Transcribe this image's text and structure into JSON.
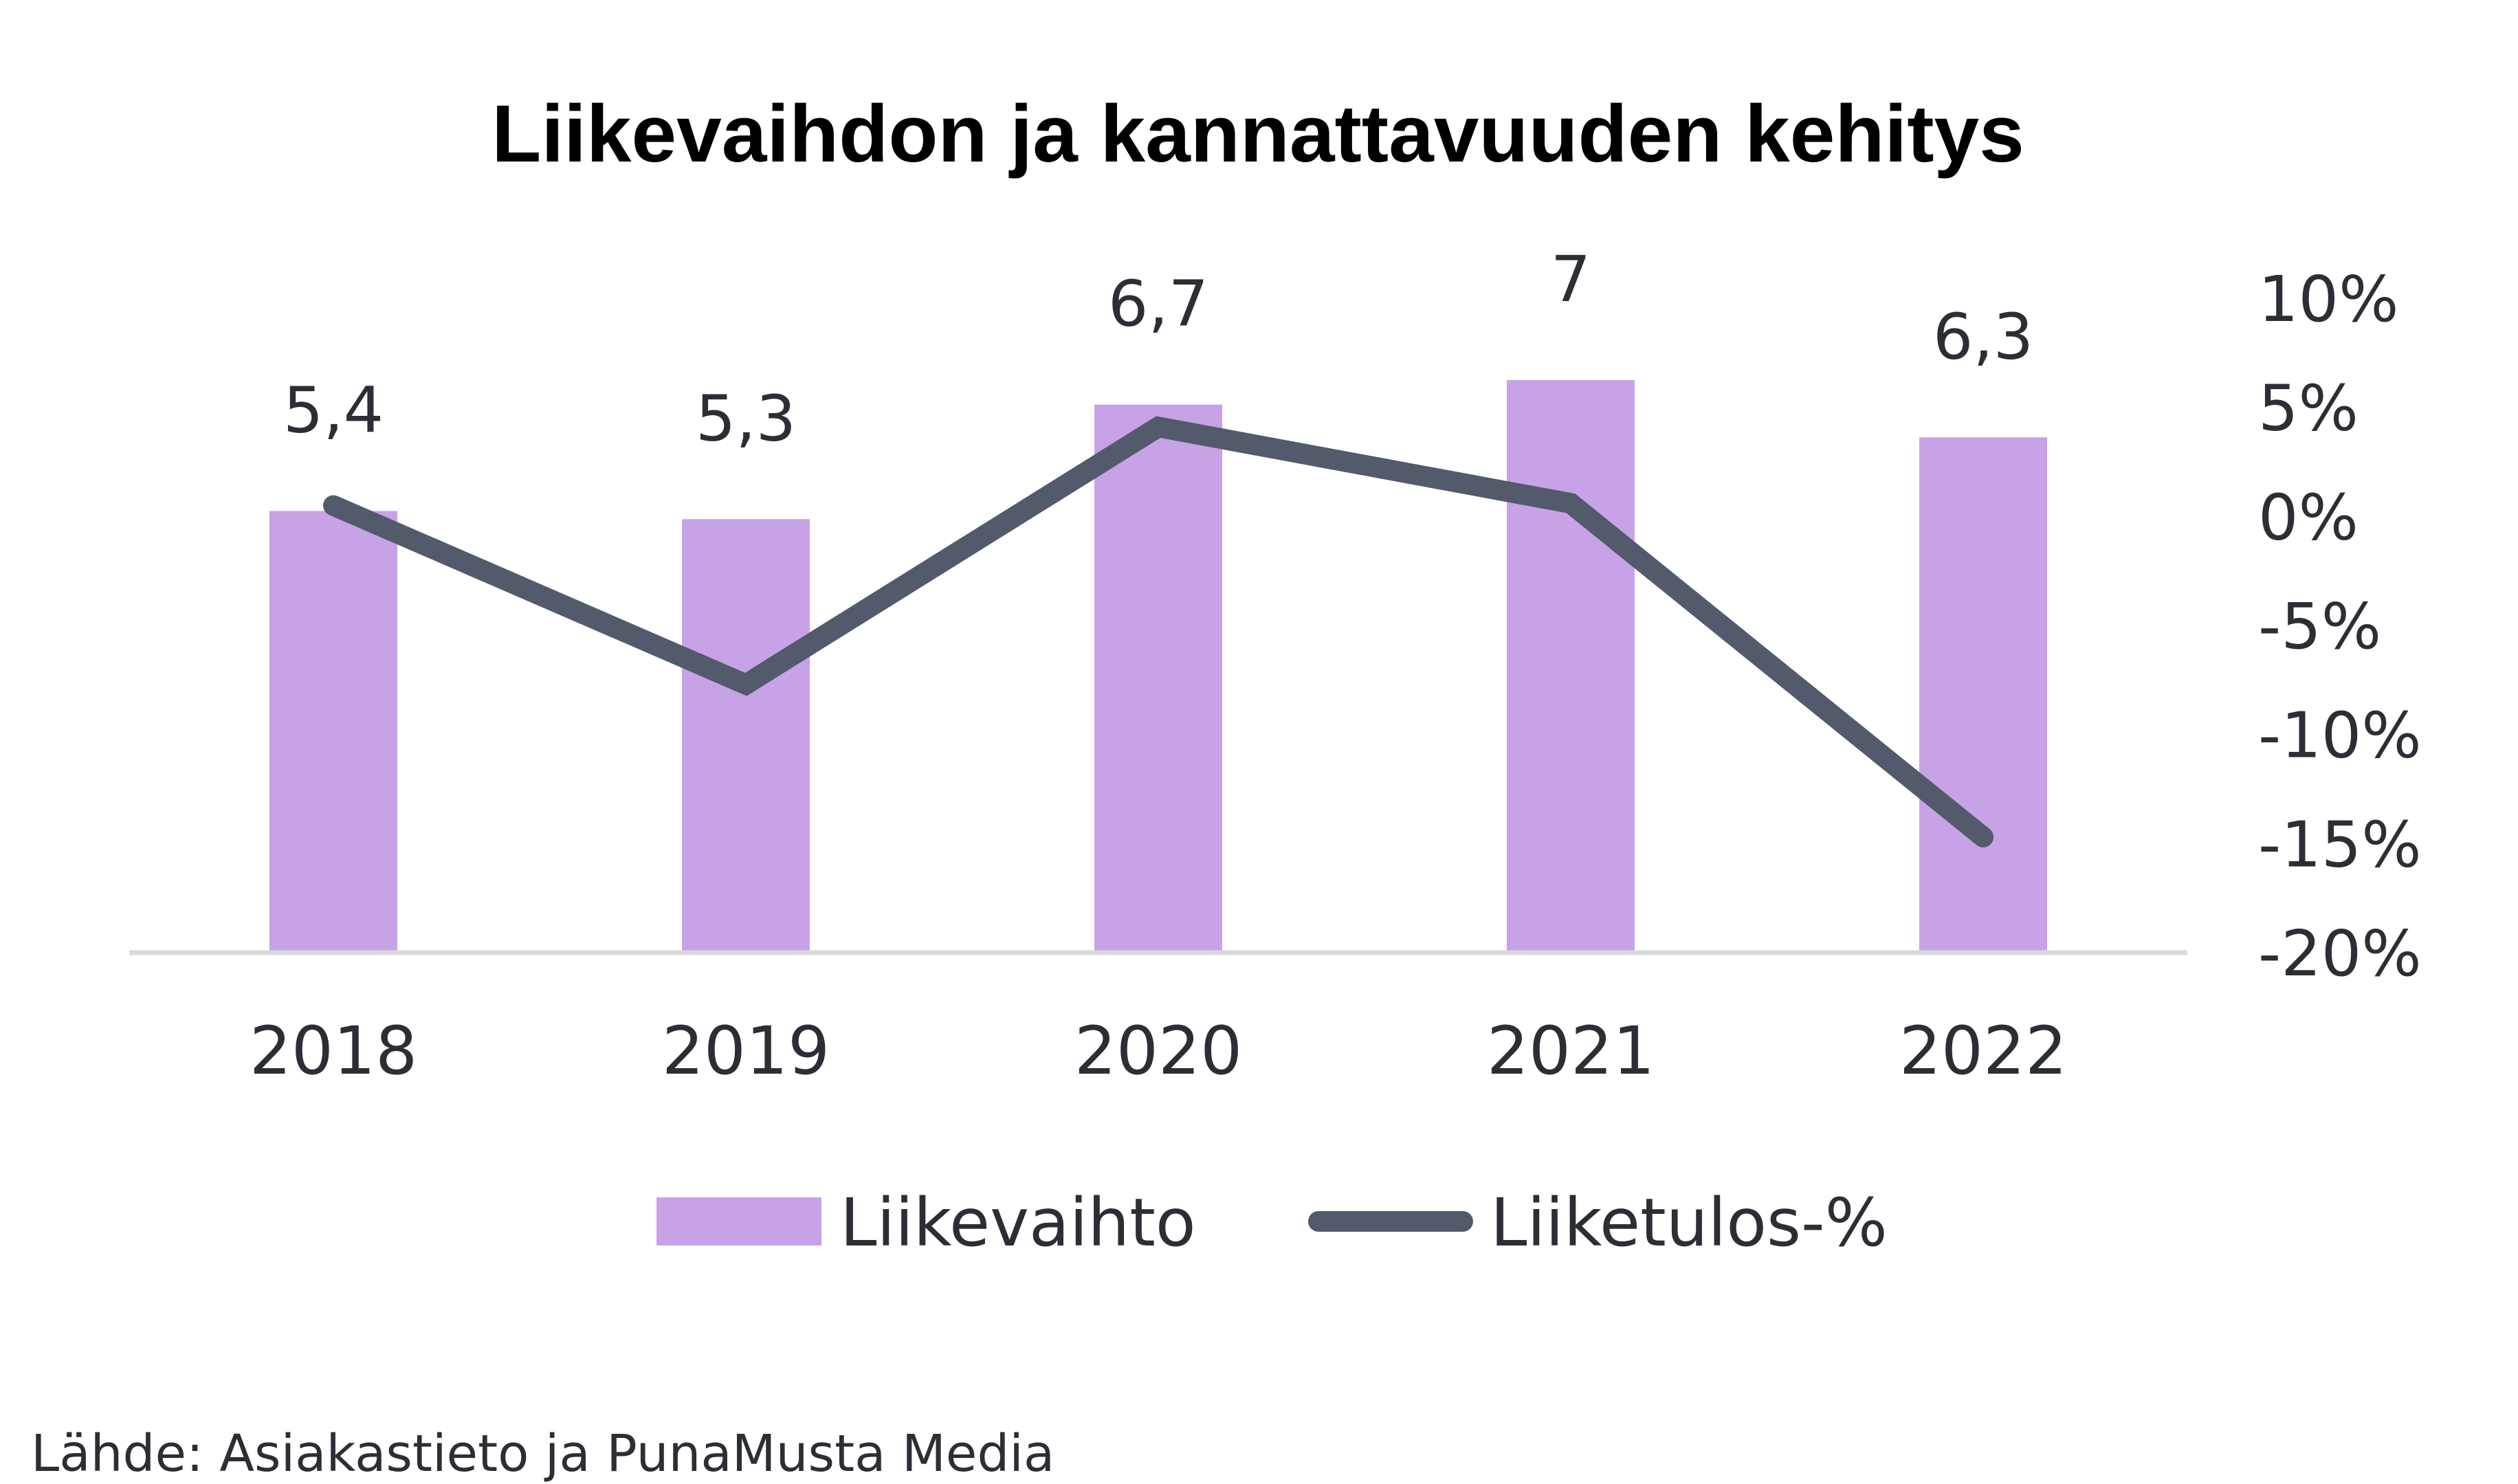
{
  "chart_data": {
    "type": "bar",
    "title": "Liikevaihdon ja kannattavuuden kehitys",
    "xlabel": "",
    "ylabel": "",
    "categories": [
      "2018",
      "2019",
      "2020",
      "2021",
      "2022"
    ],
    "series": [
      {
        "name": "Liikevaihto",
        "type": "bar",
        "axis": "primary",
        "values": [
          5.4,
          5.3,
          6.7,
          7,
          6.3
        ],
        "data_labels": [
          "5,4",
          "5,3",
          "6,7",
          "7",
          "6,3"
        ],
        "color": "#c8a2e6"
      },
      {
        "name": "Liiketulos-%",
        "type": "line",
        "axis": "secondary",
        "values": [
          0.5,
          -7.7,
          4.1,
          0.6,
          -14.7
        ],
        "unit": "%",
        "color": "#525a6b"
      }
    ],
    "primary_axis": {
      "visible": false,
      "ylim": [
        0,
        8
      ]
    },
    "secondary_axis": {
      "visible": true,
      "position": "right",
      "ylim": [
        -20,
        10
      ],
      "ticks": [
        10,
        5,
        0,
        -5,
        -10,
        -15,
        -20
      ],
      "tick_labels": [
        "10%",
        "5%",
        "0%",
        "-5%",
        "-10%",
        "-15%",
        "-20%"
      ]
    },
    "grid": false,
    "legend": {
      "position": "bottom",
      "entries": [
        "Liikevaihto",
        "Liiketulos-%"
      ]
    },
    "source_note": "Lähde: Asiakastieto ja PunaMusta Media"
  },
  "colors": {
    "bar": "#c8a2e6",
    "line": "#525a6b",
    "axis_line": "#d9d9d9",
    "text": "#2b2e35"
  }
}
